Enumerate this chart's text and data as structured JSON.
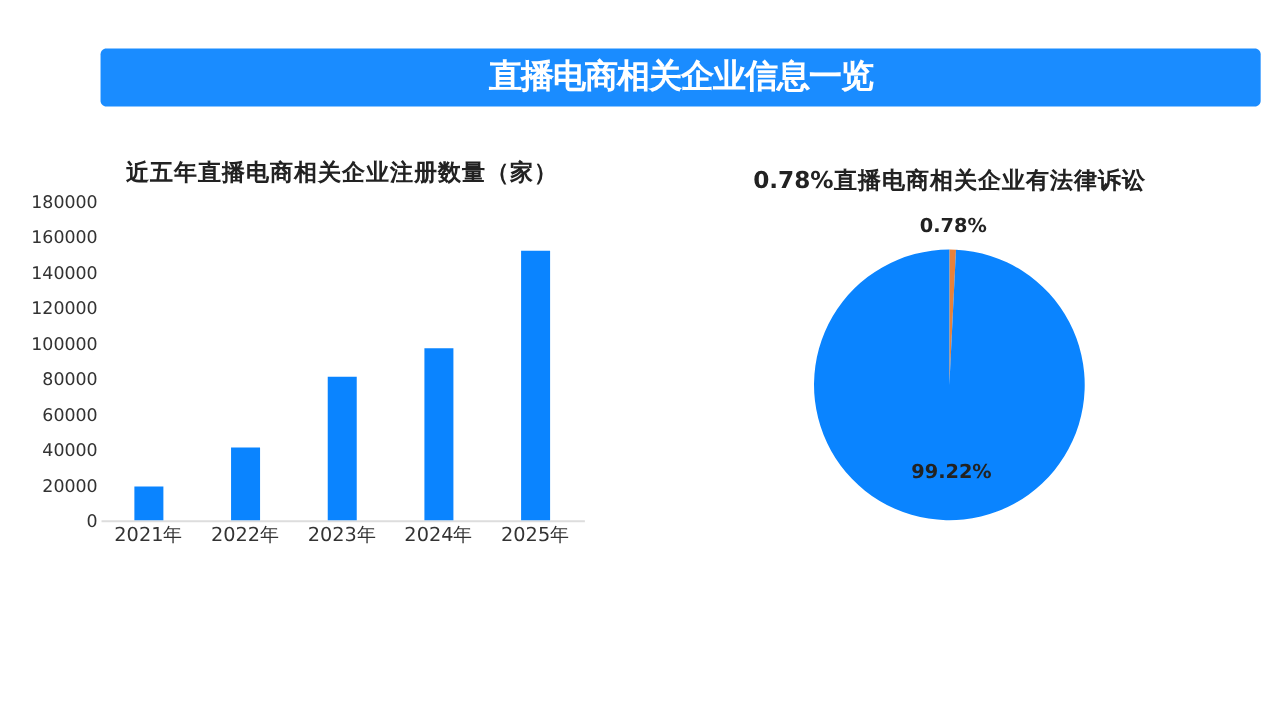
{
  "chart_data": [
    {
      "type": "other",
      "title": "直播电商相关企业信息一览"
    },
    {
      "type": "bar",
      "title": "近五年直播电商相关企业注册数量（家）",
      "categories": [
        "2021年",
        "2022年",
        "2023年",
        "2024年",
        "2025年"
      ],
      "values": [
        19000,
        41000,
        81000,
        97000,
        152000
      ],
      "color": "#0a84ff",
      "ylim": [
        0,
        180000
      ],
      "yticks": [
        0,
        20000,
        40000,
        60000,
        80000,
        100000,
        120000,
        140000,
        160000,
        180000
      ],
      "grid": false
    },
    {
      "type": "pie",
      "title": "0.78%直播电商相关企业有法律诉讼",
      "categories": [
        null,
        null
      ],
      "values": [
        0.78,
        99.22
      ],
      "colors": [
        "#e8813a",
        "#0a84ff"
      ],
      "value_labels": [
        "0.78%",
        "99.22%"
      ]
    }
  ]
}
